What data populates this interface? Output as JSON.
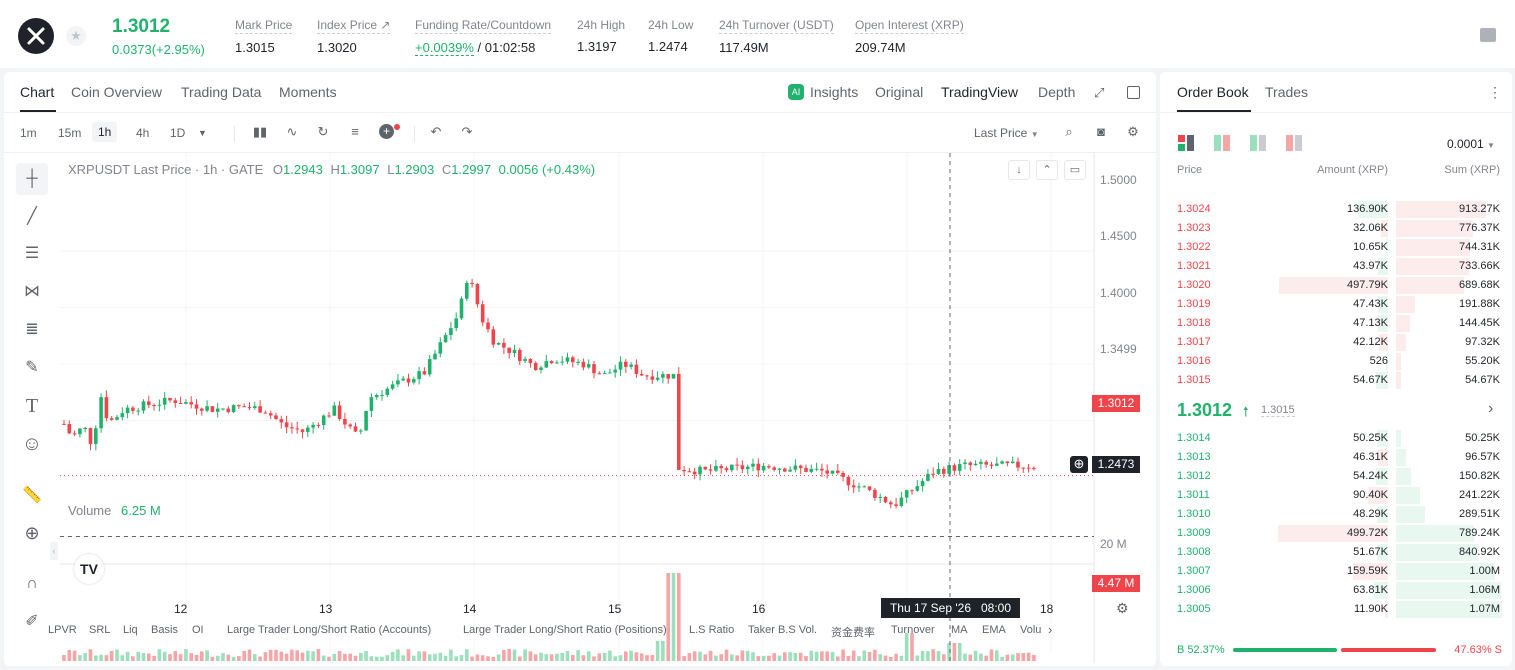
{
  "ticker": {
    "last_price": "1.3012",
    "change": "0.0373(+2.95%)",
    "stats": [
      {
        "label": "Mark Price",
        "value": "1.3015"
      },
      {
        "label": "Index Price ↗",
        "value": "1.3020"
      },
      {
        "label": "Funding Rate/Countdown",
        "value_rate": "+0.0039%",
        "value_cd": " / 01:02:58"
      },
      {
        "label": "24h High",
        "value": "1.3197"
      },
      {
        "label": "24h Low",
        "value": "1.2474"
      },
      {
        "label": "24h Turnover (USDT)",
        "value": "117.49M"
      },
      {
        "label": "Open Interest (XRP)",
        "value": "209.74M"
      }
    ]
  },
  "chart_tabs": {
    "chart": "Chart",
    "coin": "Coin Overview",
    "trading": "Trading Data",
    "moments": "Moments"
  },
  "view_tabs": {
    "insights": "Insights",
    "original": "Original",
    "tradingview": "TradingView",
    "depth": "Depth"
  },
  "intervals": [
    "1m",
    "15m",
    "1h",
    "4h",
    "1D"
  ],
  "price_type": "Last Price",
  "legend": {
    "symbol": "XRPUSDT Last Price · 1h · GATE",
    "o_label": "O",
    "o": "1.2943",
    "h_label": "H",
    "h": "1.3097",
    "l_label": "L",
    "l": "1.2903",
    "c_label": "C",
    "c": "1.2997",
    "chg": "0.0056 (+0.43%)"
  },
  "volume_legend": {
    "label": "Volume",
    "value": "6.25 M"
  },
  "price_labels": [
    "1.5000",
    "1.4500",
    "1.4000",
    "1.3499"
  ],
  "current_price_tag": "1.3012",
  "crosshair_price_tag": "1.2473",
  "volume_labels": {
    "axis": "20 M",
    "current": "4.47 M"
  },
  "x_labels": [
    "12",
    "13",
    "14",
    "15",
    "16",
    "18"
  ],
  "crosshair_time": "Thu 17 Sep '26   08:00",
  "indicators": [
    "LPVR",
    "SRL",
    "Liq",
    "Basis",
    "OI",
    "Large Trader Long/Short Ratio (Accounts)",
    "Large Trader Long/Short Ratio (Positions)",
    "L.S Ratio",
    "Taker B.S Vol.",
    "资金费率",
    "Turnover",
    "MA",
    "EMA",
    "Volu"
  ],
  "orderbook": {
    "tabs": {
      "book": "Order Book",
      "trades": "Trades"
    },
    "precision": "0.0001",
    "headers": {
      "price": "Price",
      "amount": "Amount (XRP)",
      "sum": "Sum (XRP)"
    },
    "asks": [
      {
        "price": "1.3024",
        "amount": "136.90K",
        "sum": "913.27K"
      },
      {
        "price": "1.3023",
        "amount": "32.06K",
        "sum": "776.37K"
      },
      {
        "price": "1.3022",
        "amount": "10.65K",
        "sum": "744.31K"
      },
      {
        "price": "1.3021",
        "amount": "43.97K",
        "sum": "733.66K"
      },
      {
        "price": "1.3020",
        "amount": "497.79K",
        "sum": "689.68K"
      },
      {
        "price": "1.3019",
        "amount": "47.43K",
        "sum": "191.88K"
      },
      {
        "price": "1.3018",
        "amount": "47.13K",
        "sum": "144.45K"
      },
      {
        "price": "1.3017",
        "amount": "42.12K",
        "sum": "97.32K"
      },
      {
        "price": "1.3016",
        "amount": "526",
        "sum": "55.20K"
      },
      {
        "price": "1.3015",
        "amount": "54.67K",
        "sum": "54.67K"
      }
    ],
    "mid_price": "1.3012",
    "mid_mark": "1.3015",
    "bids": [
      {
        "price": "1.3014",
        "amount": "50.25K",
        "sum": "50.25K"
      },
      {
        "price": "1.3013",
        "amount": "46.31K",
        "sum": "96.57K"
      },
      {
        "price": "1.3012",
        "amount": "54.24K",
        "sum": "150.82K"
      },
      {
        "price": "1.3011",
        "amount": "90.40K",
        "sum": "241.22K"
      },
      {
        "price": "1.3010",
        "amount": "48.29K",
        "sum": "289.51K"
      },
      {
        "price": "1.3009",
        "amount": "499.72K",
        "sum": "789.24K"
      },
      {
        "price": "1.3008",
        "amount": "51.67K",
        "sum": "840.92K"
      },
      {
        "price": "1.3007",
        "amount": "159.59K",
        "sum": "1.00M"
      },
      {
        "price": "1.3006",
        "amount": "63.81K",
        "sum": "1.06M"
      },
      {
        "price": "1.3005",
        "amount": "11.90K",
        "sum": "1.07M"
      }
    ],
    "buy_ratio": "B 52.37%",
    "sell_ratio": "47.63% S",
    "buy_fraction": 0.5237
  },
  "colors": {
    "up": "#20b26c",
    "down": "#ef454a"
  }
}
